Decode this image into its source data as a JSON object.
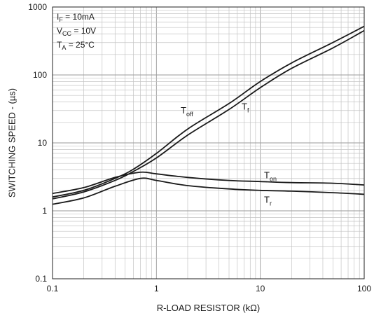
{
  "chart_data": {
    "type": "line",
    "title": "",
    "xlabel": "R-LOAD RESISTOR (kΩ)",
    "ylabel": "SWITCHING SPEED - (µs)",
    "xscale": "log",
    "yscale": "log",
    "xlim": [
      0.1,
      100
    ],
    "ylim": [
      0.1,
      1000
    ],
    "grid": true,
    "x_ticks": [
      "0.1",
      "1",
      "10",
      "100"
    ],
    "y_ticks": [
      "0.1",
      "1",
      "10",
      "100",
      "1000"
    ],
    "conditions": [
      {
        "main": "I",
        "sub": "F",
        "rest": " = 10mA"
      },
      {
        "main": "V",
        "sub": "CC",
        "rest": " = 10V"
      },
      {
        "main": "T",
        "sub": "A",
        "rest": " = 25°C"
      }
    ],
    "series": [
      {
        "name": "Toff",
        "label_main": "T",
        "label_sub": "off",
        "label_at": [
          0.1,
          20
        ],
        "x": [
          0.1,
          0.2,
          0.4,
          0.6,
          1,
          2,
          5,
          10,
          20,
          50,
          100
        ],
        "y": [
          1.6,
          2.0,
          3.0,
          4.1,
          7.0,
          16,
          38,
          80,
          150,
          300,
          520
        ]
      },
      {
        "name": "Tf",
        "label_main": "T",
        "label_sub": "f",
        "label_at": [
          0.25,
          18
        ],
        "x": [
          0.1,
          0.2,
          0.4,
          0.6,
          1,
          2,
          5,
          10,
          20,
          50,
          100
        ],
        "y": [
          1.5,
          1.9,
          2.8,
          3.8,
          6.0,
          13,
          31,
          65,
          125,
          250,
          450
        ]
      },
      {
        "name": "Ton",
        "label_main": "T",
        "label_sub": "on",
        "label_at": [
          0.25,
          3.6
        ],
        "x": [
          0.1,
          0.2,
          0.4,
          0.7,
          1,
          2,
          5,
          10,
          20,
          50,
          100
        ],
        "y": [
          1.8,
          2.2,
          3.1,
          3.7,
          3.5,
          3.1,
          2.8,
          2.7,
          2.6,
          2.55,
          2.4
        ]
      },
      {
        "name": "Tr",
        "label_main": "T",
        "label_sub": "r",
        "label_at": [
          0.25,
          1.25
        ],
        "x": [
          0.1,
          0.2,
          0.4,
          0.7,
          1,
          2,
          5,
          10,
          20,
          50,
          100
        ],
        "y": [
          1.25,
          1.55,
          2.3,
          3.0,
          2.8,
          2.35,
          2.1,
          2.0,
          1.95,
          1.85,
          1.75
        ]
      }
    ]
  }
}
